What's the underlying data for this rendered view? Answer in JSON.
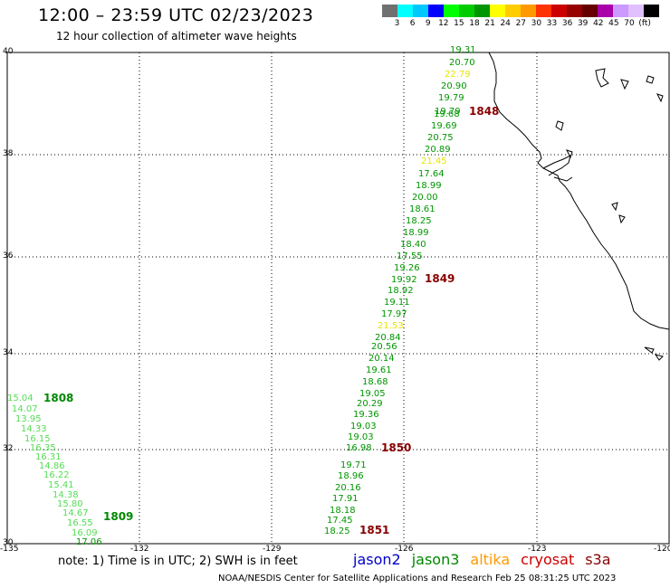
{
  "header": {
    "title": "12:00 – 23:59 UTC 02/23/2023",
    "subtitle": "12 hour collection of altimeter wave heights"
  },
  "color_scale": {
    "colors": [
      "#707070",
      "#00ffff",
      "#00c8ff",
      "#0000ff",
      "#00ff00",
      "#00cc00",
      "#009600",
      "#ffff00",
      "#ffcc00",
      "#ff9900",
      "#ff3300",
      "#cc0000",
      "#960000",
      "#660000",
      "#aa00aa",
      "#cc99ff",
      "#e0c0ff",
      "#000000"
    ],
    "labels": [
      "3",
      "6",
      "9",
      "12",
      "15",
      "18",
      "21",
      "24",
      "27",
      "30",
      "33",
      "36",
      "39",
      "42",
      "45",
      "70",
      "(ft)"
    ]
  },
  "axes": {
    "lat_labels": [
      "40",
      "38",
      "36",
      "34",
      "32",
      "30"
    ],
    "lon_labels": [
      "-135",
      "-132",
      "-129",
      "-126",
      "-123",
      "-120"
    ]
  },
  "tracks": {
    "east": {
      "values": [
        "19.31",
        "20.70",
        "22.79",
        "20.90",
        "19.79",
        "19.79",
        "19.68",
        "19.69",
        "20.75",
        "20.89",
        "21.45",
        "17.64",
        "18.99",
        "20.00",
        "18.61",
        "18.25",
        "18.99",
        "18.40",
        "17.55",
        "19.26",
        "19.92",
        "18.92",
        "19.11",
        "17.97",
        "21.53",
        "20.84",
        "20.56",
        "20.14",
        "19.61",
        "18.68",
        "19.05",
        "20.29",
        "19.36",
        "19.03",
        "19.03",
        "16.98",
        "19.71",
        "18.96",
        "20.16",
        "17.91",
        "18.18",
        "17.45",
        "18.25"
      ],
      "passes": [
        "1848",
        "1849",
        "1850",
        "1851"
      ]
    },
    "west": {
      "values": [
        "15.04",
        "14.07",
        "13.95",
        "14.33",
        "16.15",
        "16.35",
        "16.31",
        "14.86",
        "16.22",
        "15.41",
        "14.38",
        "15.80",
        "14.67",
        "16.55",
        "16.09",
        "17.06"
      ],
      "passes": [
        "1808",
        "1809"
      ]
    }
  },
  "note": "note:  1) Time is in UTC;  2) SWH is in feet",
  "legend": {
    "jason2": {
      "label": "jason2",
      "color": "#0000cc"
    },
    "jason3": {
      "label": "jason3",
      "color": "#008800"
    },
    "altika": {
      "label": "altika",
      "color": "#ff9900"
    },
    "cryosat": {
      "label": "cryosat",
      "color": "#cc0000"
    },
    "s3a": {
      "label": "s3a",
      "color": "#880000"
    }
  },
  "footer": "NOAA/NESDIS Center for Satellite Applications and Research    Feb 25 08:31:25 UTC 2023"
}
